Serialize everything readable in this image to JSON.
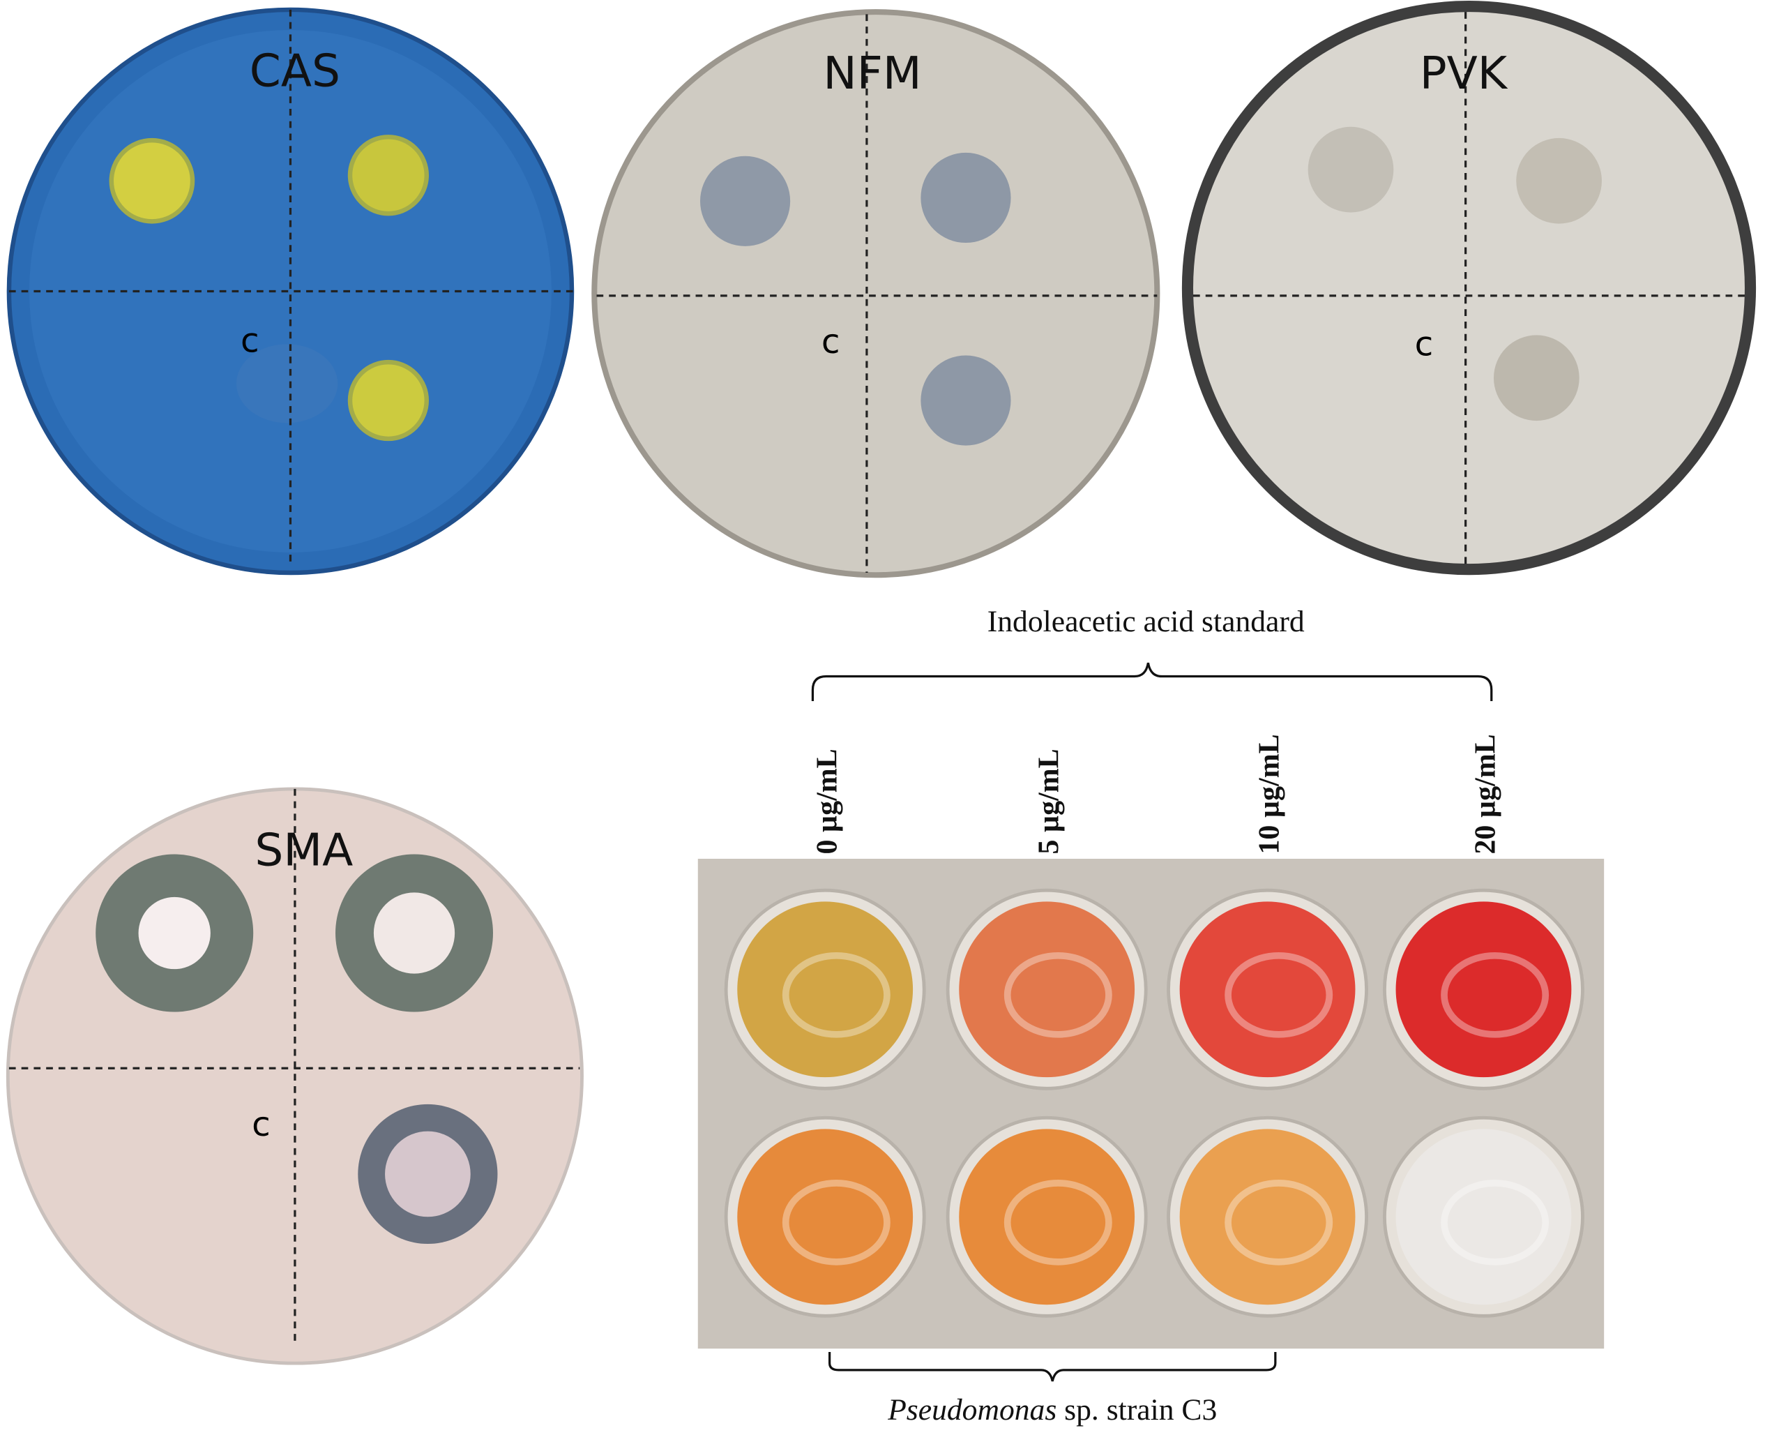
{
  "plates": [
    {
      "label": "CAS",
      "quadrant_label": "c"
    },
    {
      "label": "NFM",
      "quadrant_label": "c"
    },
    {
      "label": "PVK",
      "quadrant_label": "c"
    },
    {
      "label": "SMA",
      "quadrant_label": "c"
    }
  ],
  "iaa": {
    "standard_label": "Indoleacetic acid standard",
    "concentrations": [
      "0 µg/mL",
      "5 µg/mL",
      "10 µg/mL",
      "20 µg/mL"
    ],
    "strain_label": {
      "genus": "Pseudomonas",
      "rest": " sp. strain C3"
    }
  }
}
